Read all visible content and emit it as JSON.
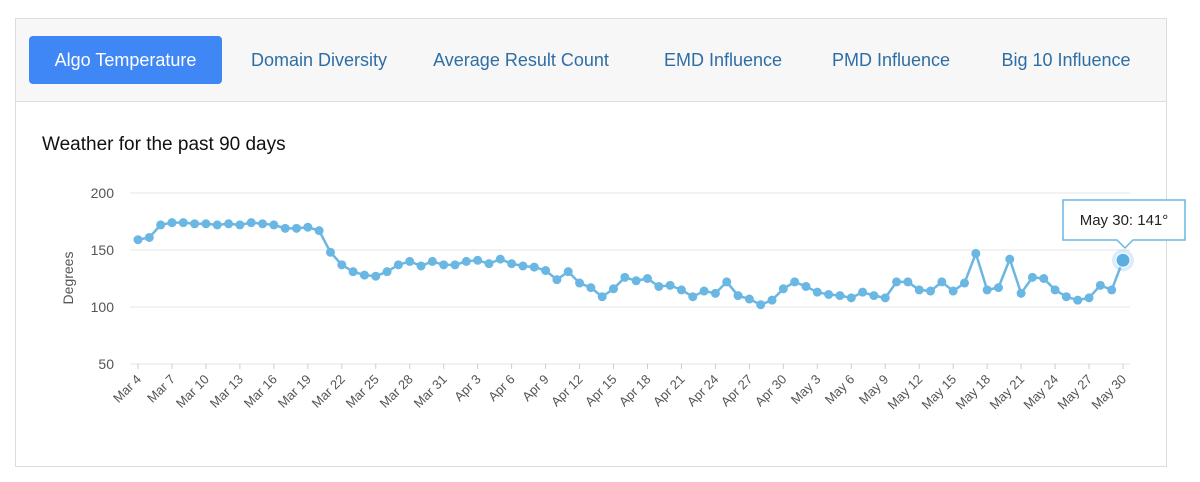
{
  "tabs": [
    "Algo Temperature",
    "Domain Diversity",
    "Average Result Count",
    "EMD Influence",
    "PMD Influence",
    "Big 10 Influence"
  ],
  "tooltip": "May 30: 141°",
  "chart_data": {
    "type": "line",
    "title": "Weather for the past 90 days",
    "y_label": "Degrees",
    "color": "#6ab7e3",
    "categories": [
      "Mar 4",
      null,
      null,
      "Mar 7",
      null,
      null,
      "Mar 10",
      null,
      null,
      "Mar 13",
      null,
      null,
      "Mar 16",
      null,
      null,
      "Mar 19",
      null,
      null,
      "Mar 22",
      null,
      null,
      "Mar 25",
      null,
      null,
      "Mar 28",
      null,
      null,
      "Mar 31",
      null,
      null,
      "Apr 3",
      null,
      null,
      "Apr 6",
      null,
      null,
      "Apr 9",
      null,
      null,
      "Apr 12",
      null,
      null,
      "Apr 15",
      null,
      null,
      "Apr 18",
      null,
      null,
      "Apr 21",
      null,
      null,
      "Apr 24",
      null,
      null,
      "Apr 27",
      null,
      null,
      "Apr 30",
      null,
      null,
      "May 3",
      null,
      null,
      "May 6",
      null,
      null,
      "May 9",
      null,
      null,
      "May 12",
      null,
      null,
      "May 15",
      null,
      null,
      "May 18",
      null,
      null,
      "May 21",
      null,
      null,
      "May 24",
      null,
      null,
      "May 27",
      null,
      null,
      "May 30"
    ],
    "values": [
      159,
      161,
      172,
      174,
      174,
      173,
      173,
      172,
      173,
      172,
      174,
      173,
      172,
      169,
      169,
      170,
      167,
      148,
      137,
      131,
      128,
      127,
      131,
      137,
      140,
      136,
      140,
      137,
      137,
      140,
      141,
      138,
      142,
      138,
      136,
      135,
      132,
      124,
      131,
      121,
      117,
      109,
      116,
      126,
      123,
      125,
      118,
      119,
      115,
      109,
      114,
      112,
      122,
      110,
      107,
      102,
      106,
      116,
      122,
      118,
      113,
      111,
      110,
      108,
      113,
      110,
      108,
      122,
      122,
      115,
      114,
      122,
      114,
      121,
      147,
      115,
      117,
      142,
      112,
      126,
      125,
      115,
      109,
      106,
      108,
      119,
      115,
      141
    ],
    "ylim": [
      50,
      200
    ],
    "yticks": [
      50,
      100,
      150,
      200
    ],
    "grid": true
  }
}
